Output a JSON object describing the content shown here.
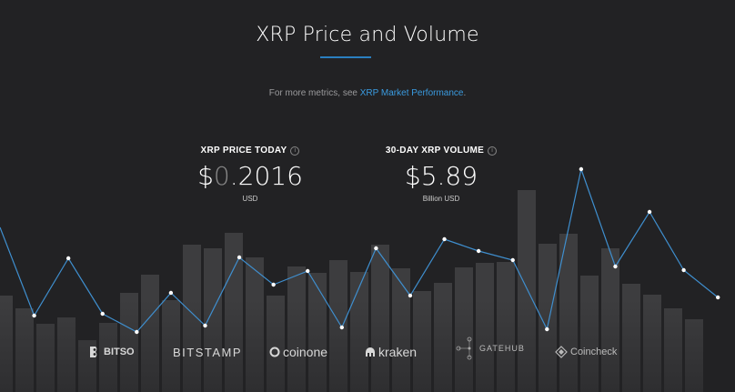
{
  "header": {
    "title": "XRP Price and Volume",
    "subtitle_prefix": "For more metrics, see ",
    "subtitle_link": "XRP Market Performance",
    "subtitle_suffix": "."
  },
  "stats": {
    "price": {
      "label": "XRP PRICE TODAY",
      "value_prefix": "$",
      "value_dim": "0",
      "value_main": ".2016",
      "unit": "USD"
    },
    "volume": {
      "label": "30-DAY XRP VOLUME",
      "value": "$5.89",
      "unit": "Billion USD"
    }
  },
  "exchanges": {
    "bitso": "BITSO",
    "bitstamp": "BITSTAMP",
    "coinone": "coinone",
    "kraken": "kraken",
    "gatehub": "GATEHUB",
    "coincheck": "Coincheck"
  },
  "colors": {
    "background": "#222224",
    "accent": "#2a7fc0",
    "link": "#3a9be0",
    "bar": "#3d3d3f",
    "line": "#3f8fcf"
  },
  "chart_data": {
    "type": "bar",
    "volume_values": [
      106,
      92,
      75,
      82,
      57,
      76,
      109,
      129,
      101,
      162,
      158,
      175,
      148,
      106,
      138,
      131,
      145,
      132,
      162,
      136,
      111,
      120,
      137,
      142,
      143,
      222,
      163,
      174,
      128,
      158,
      119,
      107,
      92,
      80
    ],
    "price_values": [
      181,
      84,
      147,
      86,
      66,
      109,
      73,
      148,
      118,
      133,
      71,
      158,
      106,
      168,
      155,
      145,
      69,
      245,
      138,
      198,
      134,
      104
    ]
  }
}
